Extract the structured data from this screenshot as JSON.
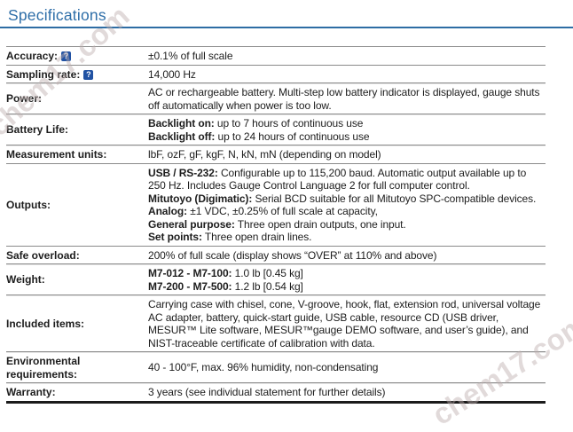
{
  "page": {
    "title": "Specifications"
  },
  "watermark": {
    "text": "chem17.com"
  },
  "colors": {
    "title_blue": "#2e6ea8",
    "rule_blue": "#2e6da4",
    "label_blue": "#1d5a9e",
    "help_icon_bg": "#2152a3",
    "divider_gray": "#8a8a8a",
    "bottom_border": "#1b1b1b",
    "body_text": "#1d1d1d",
    "watermark_gray": "#bcacac"
  },
  "table": {
    "help_glyph": "?",
    "rows": [
      {
        "label": "Accuracy:",
        "has_help": true,
        "lines": [
          {
            "b": "",
            "t": "±0.1% of full scale"
          }
        ]
      },
      {
        "label": "Sampling rate:",
        "has_help": true,
        "lines": [
          {
            "b": "",
            "t": "14,000 Hz"
          }
        ]
      },
      {
        "label": "Power:",
        "has_help": false,
        "lines": [
          {
            "b": "",
            "t": "AC or rechargeable battery. Multi-step low battery indicator is displayed, gauge shuts off automatically when power is too low."
          }
        ]
      },
      {
        "label": "Battery Life:",
        "has_help": false,
        "lines": [
          {
            "b": "Backlight on:",
            "t": " up to 7 hours of continuous use"
          },
          {
            "b": "Backlight off:",
            "t": " up to 24 hours of continuous use"
          }
        ]
      },
      {
        "label": "Measurement units:",
        "has_help": false,
        "lines": [
          {
            "b": "",
            "t": "lbF, ozF, gF, kgF, N, kN, mN (depending on model)"
          }
        ]
      },
      {
        "label": "Outputs:",
        "has_help": false,
        "lines": [
          {
            "b": "USB / RS-232:",
            "t": " Configurable up to 115,200 baud. Automatic output available up to 250 Hz. Includes Gauge Control Language 2 for full computer control."
          },
          {
            "b": "Mitutoyo (Digimatic):",
            "t": " Serial BCD suitable for all Mitutoyo SPC-compatible devices."
          },
          {
            "b": "Analog:",
            "t": " ±1 VDC, ±0.25% of full scale at capacity,"
          },
          {
            "b": "General purpose:",
            "t": " Three open drain outputs, one input."
          },
          {
            "b": "Set points:",
            "t": " Three open drain lines."
          }
        ]
      },
      {
        "label": "Safe overload:",
        "has_help": false,
        "lines": [
          {
            "b": "",
            "t": "200% of full scale (display shows “OVER” at 110% and above)"
          }
        ]
      },
      {
        "label": "Weight:",
        "has_help": false,
        "lines": [
          {
            "b": "M7-012 - M7-100:",
            "t": " 1.0 lb [0.45 kg]"
          },
          {
            "b": "M7-200 - M7-500:",
            "t": " 1.2 lb [0.54 kg]"
          }
        ]
      },
      {
        "label": "Included items:",
        "has_help": false,
        "lines": [
          {
            "b": "",
            "t": "Carrying case with chisel, cone, V-groove, hook, flat, extension rod, universal voltage AC adapter, battery, quick-start guide, USB cable, resource CD (USB driver, MESUR™ Lite software, MESUR™gauge DEMO software, and user’s guide), and NIST-traceable certificate of calibration with data."
          }
        ]
      },
      {
        "label": "Environmental requirements:",
        "has_help": false,
        "lines": [
          {
            "b": "",
            "t": "40 - 100°F, max. 96% humidity, non-condensating"
          }
        ]
      },
      {
        "label": "Warranty:",
        "has_help": false,
        "lines": [
          {
            "b": "",
            "t": "3 years (see individual statement for further details)"
          }
        ]
      }
    ]
  }
}
